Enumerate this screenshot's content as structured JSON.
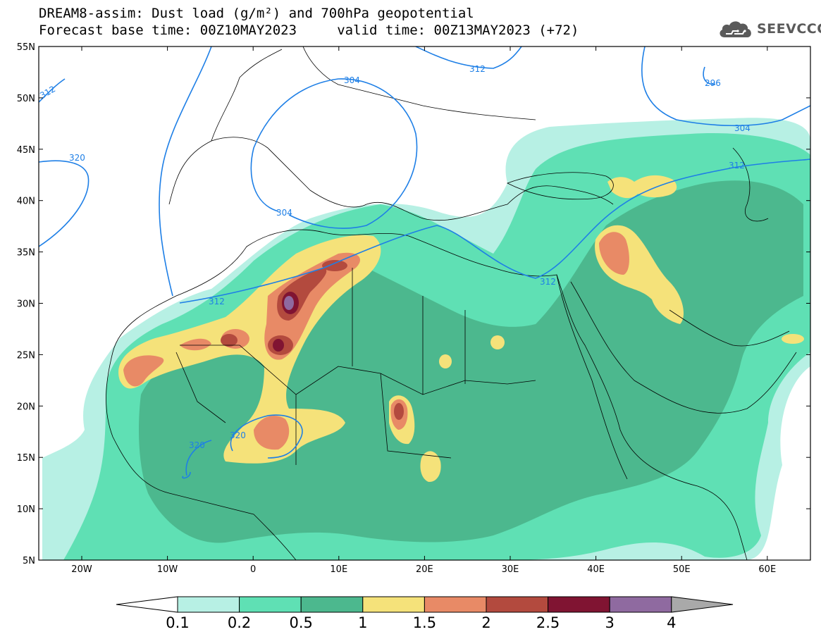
{
  "header": {
    "title_line1": "DREAM8-assim: Dust load (g/m²) and 700hPa geopotential",
    "title_line2": "Forecast base time: 00Z10MAY2023     valid time: 00Z13MAY2023 (+72)"
  },
  "logo": {
    "text": "SEEVCCC",
    "icon": "cloud-icon"
  },
  "map": {
    "lat_labels": [
      "55N",
      "50N",
      "45N",
      "40N",
      "35N",
      "30N",
      "25N",
      "20N",
      "15N",
      "10N",
      "5N"
    ],
    "lon_labels": [
      "20W",
      "10W",
      "0",
      "10E",
      "20E",
      "30E",
      "40E",
      "50E",
      "60E"
    ],
    "contour_labels": [
      "312",
      "304",
      "312",
      "296",
      "320",
      "304",
      "304",
      "312",
      "312",
      "312",
      "320",
      "320"
    ],
    "colors": {
      "contour": "#1e7fe6",
      "land_border": "#000000"
    }
  },
  "colorbar": {
    "levels": [
      "0.1",
      "0.2",
      "0.5",
      "1",
      "1.5",
      "2",
      "2.5",
      "3",
      "4"
    ],
    "colors": [
      "#b7f0e4",
      "#5fe0b4",
      "#4cb88e",
      "#f5e27a",
      "#e88a66",
      "#b34a3e",
      "#801432",
      "#8f6aa0"
    ],
    "under_color": "#ffffff",
    "over_color": "#a9a9a9"
  }
}
